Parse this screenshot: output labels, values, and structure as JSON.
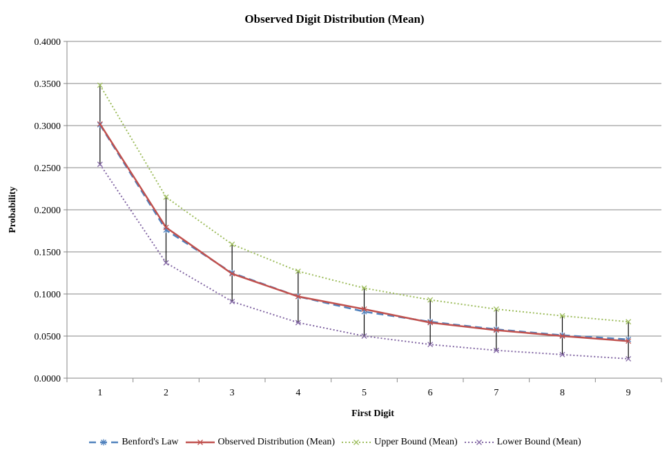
{
  "chart_data": {
    "type": "line",
    "title": "Observed Digit Distribution (Mean)",
    "xlabel": "First Digit",
    "ylabel": "Probability",
    "x": [
      1,
      2,
      3,
      4,
      5,
      6,
      7,
      8,
      9
    ],
    "ylim": [
      0,
      0.4
    ],
    "yticks": [
      "0.0000",
      "0.0500",
      "0.1000",
      "0.1500",
      "0.2000",
      "0.2500",
      "0.3000",
      "0.3500",
      "0.4000"
    ],
    "grid": "horizontal",
    "legend_position": "bottom",
    "series": [
      {
        "name": "Benford's Law",
        "color": "#4f81bd",
        "style": "dashed",
        "marker": "asterisk",
        "values": [
          0.301,
          0.176,
          0.125,
          0.097,
          0.079,
          0.067,
          0.058,
          0.051,
          0.046
        ]
      },
      {
        "name": "Observed Distribution (Mean)",
        "color": "#c0504d",
        "style": "solid",
        "marker": "x",
        "values": [
          0.302,
          0.179,
          0.124,
          0.097,
          0.082,
          0.066,
          0.057,
          0.05,
          0.044
        ]
      },
      {
        "name": "Upper Bound (Mean)",
        "color": "#9bbb59",
        "style": "dotted",
        "marker": "x",
        "values": [
          0.348,
          0.215,
          0.159,
          0.127,
          0.107,
          0.093,
          0.082,
          0.074,
          0.067
        ]
      },
      {
        "name": "Lower Bound (Mean)",
        "color": "#8064a2",
        "style": "dotted",
        "marker": "x",
        "values": [
          0.254,
          0.137,
          0.091,
          0.066,
          0.05,
          0.04,
          0.033,
          0.028,
          0.023
        ]
      }
    ],
    "error_bars": {
      "color": "#000000",
      "from_series": "Lower Bound (Mean)",
      "to_series": "Upper Bound (Mean)"
    }
  }
}
